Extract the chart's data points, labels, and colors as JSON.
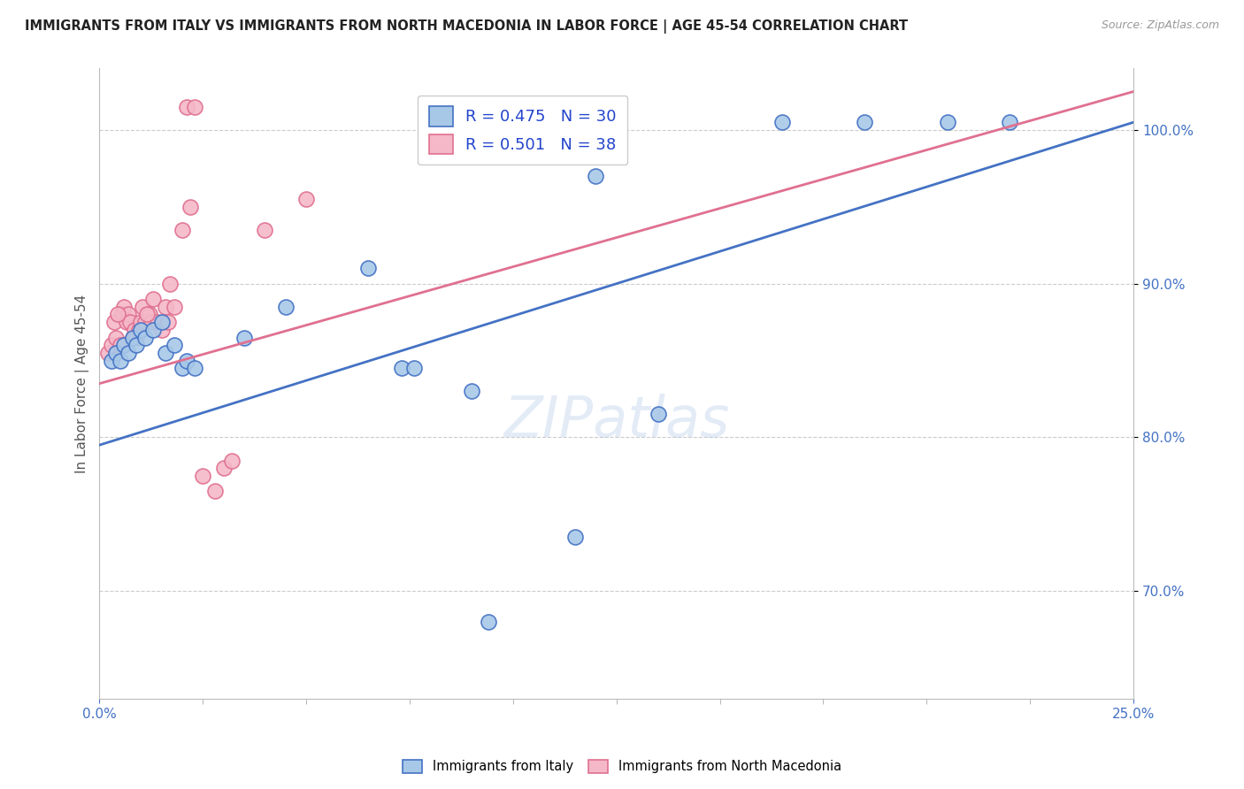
{
  "title": "IMMIGRANTS FROM ITALY VS IMMIGRANTS FROM NORTH MACEDONIA IN LABOR FORCE | AGE 45-54 CORRELATION CHART",
  "source": "Source: ZipAtlas.com",
  "ylabel": "In Labor Force | Age 45-54",
  "xlim": [
    0.0,
    25.0
  ],
  "ylim": [
    63.0,
    104.0
  ],
  "italy_color_fill": "#a8c8e8",
  "italy_color_edge": "#4472c4",
  "nm_color_fill": "#f4b8c8",
  "nm_color_edge": "#e07090",
  "italy_R": 0.475,
  "italy_N": 30,
  "nm_R": 0.501,
  "nm_N": 38,
  "ytick_vals": [
    70,
    80,
    90,
    100
  ],
  "ytick_labels": [
    "70.0%",
    "80.0%",
    "90.0%",
    "100.0%"
  ],
  "italy_x": [
    0.3,
    0.4,
    0.5,
    0.6,
    0.7,
    0.8,
    0.9,
    1.0,
    1.1,
    1.3,
    1.5,
    1.6,
    1.8,
    2.0,
    2.1,
    2.3,
    3.5,
    4.5,
    7.3,
    7.6,
    9.0,
    9.4,
    11.5,
    13.5,
    16.5,
    18.5,
    20.5,
    22.0,
    12.0,
    6.5
  ],
  "italy_y": [
    85.0,
    85.5,
    85.0,
    86.0,
    85.5,
    86.5,
    86.0,
    87.0,
    86.5,
    87.0,
    87.5,
    85.5,
    86.0,
    84.5,
    85.0,
    84.5,
    86.5,
    88.5,
    84.5,
    84.5,
    83.0,
    68.0,
    73.5,
    81.5,
    100.5,
    100.5,
    100.5,
    100.5,
    97.0,
    91.0
  ],
  "nm_x": [
    0.2,
    0.3,
    0.35,
    0.4,
    0.5,
    0.55,
    0.6,
    0.65,
    0.7,
    0.75,
    0.8,
    0.85,
    0.9,
    0.95,
    1.0,
    1.05,
    1.1,
    1.2,
    1.25,
    1.3,
    1.4,
    1.5,
    1.6,
    1.65,
    1.7,
    1.8,
    2.0,
    2.1,
    2.3,
    2.5,
    3.0,
    3.2,
    2.8,
    4.0,
    5.0,
    2.2,
    1.15,
    0.45
  ],
  "nm_y": [
    85.5,
    86.0,
    87.5,
    86.5,
    86.0,
    88.0,
    88.5,
    87.5,
    88.0,
    87.5,
    86.5,
    87.0,
    86.5,
    87.0,
    87.5,
    88.5,
    87.5,
    88.0,
    87.5,
    89.0,
    87.5,
    87.0,
    88.5,
    87.5,
    90.0,
    88.5,
    93.5,
    101.5,
    101.5,
    77.5,
    78.0,
    78.5,
    76.5,
    93.5,
    95.5,
    95.0,
    88.0,
    88.0
  ],
  "italy_trendline_x": [
    0.0,
    25.0
  ],
  "italy_trendline_y": [
    79.5,
    100.5
  ],
  "nm_trendline_x": [
    0.0,
    25.0
  ],
  "nm_trendline_y": [
    83.5,
    102.5
  ]
}
